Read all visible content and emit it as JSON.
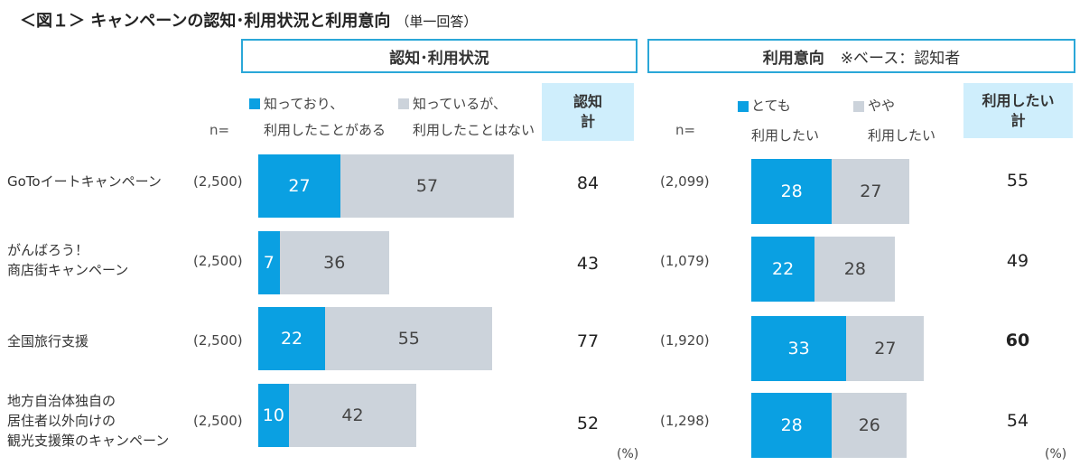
{
  "title": "＜図１＞ キャンペーンの認知･利用状況と利用意向",
  "title_note": "（単一回答）",
  "left_panel": {
    "header": "認知･利用状況",
    "legend_a": [
      "知っており、",
      "利用したことがある"
    ],
    "legend_b": [
      "知っているが、",
      "利用したことはない"
    ],
    "total_header": [
      "認知",
      "計"
    ],
    "n_label": "n=",
    "unit": "(%)"
  },
  "right_panel": {
    "header": "利用意向",
    "header_note": "※ベース：認知者",
    "legend_a": [
      "とても",
      "利用したい"
    ],
    "legend_b": [
      "やや",
      "利用したい"
    ],
    "total_header": [
      "利用したい",
      "計"
    ],
    "n_label": "n=",
    "unit": "(%)"
  },
  "colors": {
    "series_a": "#0aa0e2",
    "series_b": "#ccd3db",
    "header_border": "#2aa7d8",
    "total_bg": "#cfeefc"
  },
  "chart_data": [
    {
      "type": "bar",
      "stacked": true,
      "orientation": "horizontal",
      "title": "認知･利用状況",
      "categories": [
        "GoToイートキャンペーン",
        "がんばろう！商店街キャンペーン",
        "全国旅行支援",
        "地方自治体独自の居住者以外向けの観光支援策のキャンペーン"
      ],
      "category_lines": [
        [
          "GoToイートキャンペーン"
        ],
        [
          "がんばろう！",
          "商店街キャンペーン"
        ],
        [
          "全国旅行支援"
        ],
        [
          "地方自治体独自の",
          "居住者以外向けの",
          "観光支援策のキャンペーン"
        ]
      ],
      "n": [
        "(2,500)",
        "(2,500)",
        "(2,500)",
        "(2,500)"
      ],
      "series": [
        {
          "name": "知っており、利用したことがある",
          "values": [
            27,
            7,
            22,
            10
          ]
        },
        {
          "name": "知っているが、利用したことはない",
          "values": [
            57,
            36,
            55,
            42
          ]
        }
      ],
      "totals": [
        84,
        43,
        77,
        52
      ],
      "total_label": "認知計",
      "unit": "%"
    },
    {
      "type": "bar",
      "stacked": true,
      "orientation": "horizontal",
      "title": "利用意向 ※ベース：認知者",
      "categories": [
        "GoToイートキャンペーン",
        "がんばろう！商店街キャンペーン",
        "全国旅行支援",
        "地方自治体独自の居住者以外向けの観光支援策のキャンペーン"
      ],
      "n": [
        "(2,099)",
        "(1,079)",
        "(1,920)",
        "(1,298)"
      ],
      "series": [
        {
          "name": "とても利用したい",
          "values": [
            28,
            22,
            33,
            28
          ]
        },
        {
          "name": "やや利用したい",
          "values": [
            27,
            28,
            27,
            26
          ]
        }
      ],
      "totals": [
        55,
        49,
        60,
        54
      ],
      "totals_bold": [
        false,
        false,
        true,
        false
      ],
      "total_label": "利用したい計",
      "unit": "%"
    }
  ]
}
